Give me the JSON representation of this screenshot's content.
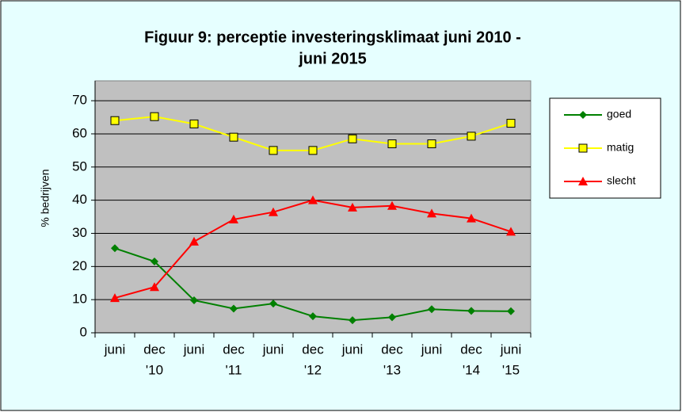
{
  "chart_data": {
    "type": "line",
    "title": [
      "Figuur 9: perceptie investeringsklimaat juni 2010 -",
      "juni 2015"
    ],
    "y_label": "% bedrijven",
    "categories": [
      [
        "juni"
      ],
      [
        "dec",
        "'10"
      ],
      [
        "juni"
      ],
      [
        "dec",
        "'11"
      ],
      [
        "juni"
      ],
      [
        "dec",
        "'12"
      ],
      [
        "juni"
      ],
      [
        "dec",
        "'13"
      ],
      [
        "juni"
      ],
      [
        "dec",
        "'14"
      ],
      [
        "juni",
        "'15"
      ]
    ],
    "series": [
      {
        "name": "goed",
        "color": "#008000",
        "marker": "diamond",
        "values": [
          25.5,
          21.5,
          9.8,
          7.3,
          8.8,
          5,
          3.8,
          4.7,
          7.1,
          6.6,
          6.5
        ]
      },
      {
        "name": "matig",
        "color": "#ffff00",
        "marker": "square",
        "values": [
          64,
          65.2,
          63,
          59,
          55,
          55,
          58.5,
          57,
          57,
          59.3,
          63.2
        ]
      },
      {
        "name": "slecht",
        "color": "#ff0000",
        "marker": "triangle",
        "values": [
          10.5,
          13.8,
          27.5,
          34.2,
          36.4,
          40,
          37.8,
          38.3,
          36,
          34.5,
          30.5
        ]
      }
    ],
    "ylim": [
      0,
      76
    ],
    "yticks": [
      0,
      10,
      20,
      30,
      40,
      50,
      60,
      70
    ],
    "grid": true,
    "legend": "right"
  }
}
